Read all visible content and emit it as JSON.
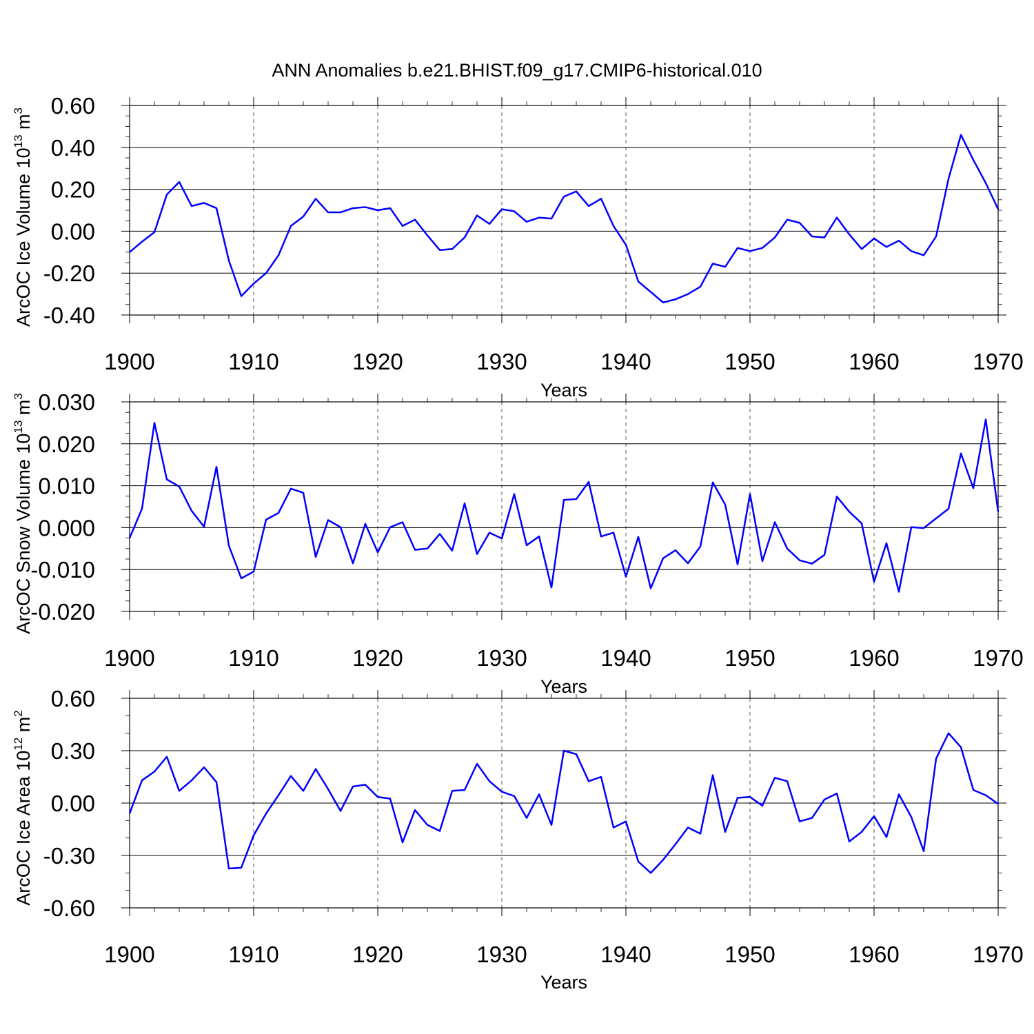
{
  "figure_title": "ANN Anomalies b.e21.BHIST.f09_g17.CMIP6-historical.010",
  "chart_data": [
    {
      "type": "line",
      "title": "",
      "xlabel": "Years",
      "ylabel": "ArcOC Ice Volume 10",
      "ylabel_exp": "13",
      "ylabel_unit": " m",
      "ylabel_unit_exp": "3",
      "xlim": [
        1900,
        1970
      ],
      "ylim": [
        -0.4,
        0.6
      ],
      "xticks": [
        1900,
        1910,
        1920,
        1930,
        1940,
        1950,
        1960,
        1970
      ],
      "xtick_labels": [
        "1900",
        "1910",
        "1920",
        "1930",
        "1940",
        "1950",
        "1960",
        "1970"
      ],
      "yticks": [
        -0.4,
        -0.2,
        0.0,
        0.2,
        0.4,
        0.6
      ],
      "ytick_labels": [
        "-0.40",
        "-0.20",
        "0.00",
        "0.20",
        "0.40",
        "0.60"
      ],
      "yminor_step": 0.05,
      "grid": "vertical-dashed",
      "color": "#0000ff",
      "x_start": 1900,
      "values": [
        -0.1,
        -0.05,
        -0.005,
        0.175,
        0.235,
        0.12,
        0.135,
        0.11,
        -0.14,
        -0.31,
        -0.25,
        -0.2,
        -0.115,
        0.025,
        0.07,
        0.155,
        0.09,
        0.09,
        0.11,
        0.115,
        0.1,
        0.11,
        0.025,
        0.055,
        -0.02,
        -0.09,
        -0.085,
        -0.03,
        0.075,
        0.035,
        0.105,
        0.095,
        0.045,
        0.065,
        0.06,
        0.165,
        0.19,
        0.12,
        0.155,
        0.025,
        -0.065,
        -0.24,
        -0.29,
        -0.34,
        -0.325,
        -0.3,
        -0.265,
        -0.155,
        -0.17,
        -0.08,
        -0.095,
        -0.08,
        -0.03,
        0.055,
        0.04,
        -0.025,
        -0.03,
        0.065,
        -0.015,
        -0.085,
        -0.035,
        -0.075,
        -0.045,
        -0.095,
        -0.115,
        -0.025,
        0.25,
        0.46,
        0.34,
        0.23,
        0.105
      ]
    },
    {
      "type": "line",
      "title": "",
      "xlabel": "Years",
      "ylabel": "ArcOC Snow Volume 10",
      "ylabel_exp": "13",
      "ylabel_unit": " m",
      "ylabel_unit_exp": "3",
      "xlim": [
        1900,
        1970
      ],
      "ylim": [
        -0.02,
        0.03
      ],
      "xticks": [
        1900,
        1910,
        1920,
        1930,
        1940,
        1950,
        1960,
        1970
      ],
      "xtick_labels": [
        "1900",
        "1910",
        "1920",
        "1930",
        "1940",
        "1950",
        "1960",
        "1970"
      ],
      "yticks": [
        -0.02,
        -0.01,
        0.0,
        0.01,
        0.02,
        0.03
      ],
      "ytick_labels": [
        "-0.020",
        "-0.010",
        "0.000",
        "0.010",
        "0.020",
        "0.030"
      ],
      "yminor_step": 0.0025,
      "grid": "vertical-dashed",
      "color": "#0000ff",
      "x_start": 1900,
      "values": [
        -0.0025,
        0.0045,
        0.025,
        0.0115,
        0.0098,
        0.004,
        0.0002,
        0.0145,
        -0.0043,
        -0.0121,
        -0.0105,
        0.0019,
        0.0035,
        0.0093,
        0.0083,
        -0.007,
        0.0018,
        0.0001,
        -0.0085,
        0.0009,
        -0.0059,
        0.0001,
        0.0013,
        -0.0053,
        -0.005,
        -0.0015,
        -0.0055,
        0.0058,
        -0.0063,
        -0.0012,
        -0.0026,
        0.008,
        -0.0042,
        -0.0021,
        -0.0143,
        0.0066,
        0.0068,
        0.0109,
        -0.0021,
        -0.0012,
        -0.0117,
        -0.0022,
        -0.0145,
        -0.0073,
        -0.0054,
        -0.0085,
        -0.0045,
        0.0108,
        0.0055,
        -0.0088,
        0.008,
        -0.008,
        0.0013,
        -0.005,
        -0.0078,
        -0.0086,
        -0.0065,
        0.0074,
        0.0038,
        0.001,
        -0.0129,
        -0.0037,
        -0.0153,
        0.0001,
        -0.0001,
        0.0022,
        0.0045,
        0.0177,
        0.0094,
        0.0258,
        0.0038
      ]
    },
    {
      "type": "line",
      "title": "",
      "xlabel": "Years",
      "ylabel": "ArcOC Ice Area 10",
      "ylabel_exp": "12",
      "ylabel_unit": " m",
      "ylabel_unit_exp": "2",
      "xlim": [
        1900,
        1970
      ],
      "ylim": [
        -0.6,
        0.6
      ],
      "xticks": [
        1900,
        1910,
        1920,
        1930,
        1940,
        1950,
        1960,
        1970
      ],
      "xtick_labels": [
        "1900",
        "1910",
        "1920",
        "1930",
        "1940",
        "1950",
        "1960",
        "1970"
      ],
      "yticks": [
        -0.6,
        -0.3,
        0.0,
        0.3,
        0.6
      ],
      "ytick_labels": [
        "-0.60",
        "-0.30",
        "0.00",
        "0.30",
        "0.60"
      ],
      "yminor_step": 0.1,
      "grid": "vertical-dashed",
      "color": "#0000ff",
      "x_start": 1900,
      "values": [
        -0.06,
        0.13,
        0.18,
        0.265,
        0.07,
        0.13,
        0.205,
        0.12,
        -0.375,
        -0.37,
        -0.185,
        -0.06,
        0.045,
        0.155,
        0.07,
        0.195,
        0.08,
        -0.045,
        0.095,
        0.105,
        0.035,
        0.025,
        -0.225,
        -0.04,
        -0.125,
        -0.16,
        0.07,
        0.075,
        0.225,
        0.125,
        0.065,
        0.04,
        -0.085,
        0.05,
        -0.125,
        0.3,
        0.28,
        0.125,
        0.15,
        -0.14,
        -0.105,
        -0.335,
        -0.4,
        -0.325,
        -0.235,
        -0.14,
        -0.175,
        0.16,
        -0.165,
        0.03,
        0.035,
        -0.015,
        0.145,
        0.125,
        -0.105,
        -0.085,
        0.02,
        0.055,
        -0.22,
        -0.165,
        -0.075,
        -0.195,
        0.05,
        -0.08,
        -0.275,
        0.255,
        0.4,
        0.32,
        0.075,
        0.045,
        -0.005
      ]
    }
  ]
}
